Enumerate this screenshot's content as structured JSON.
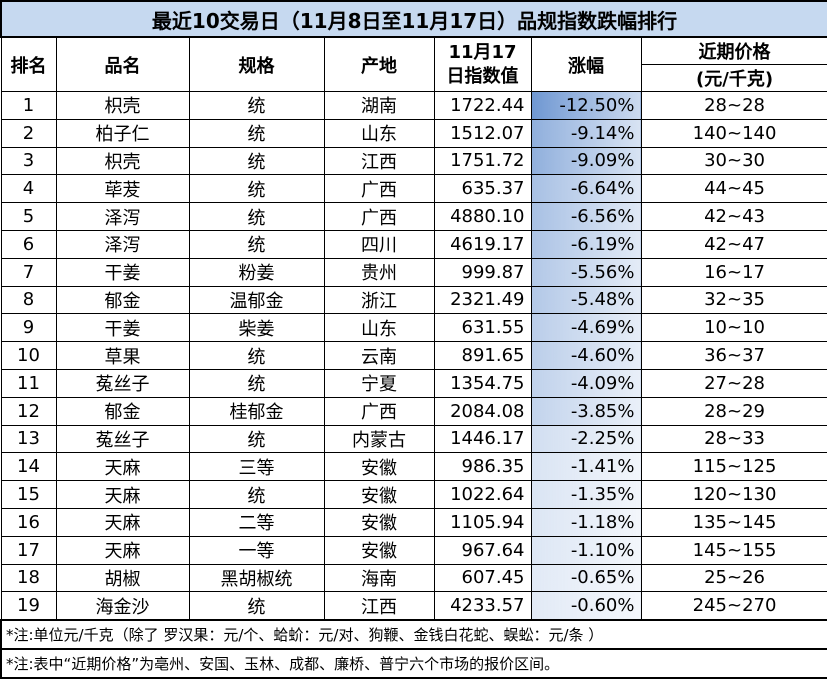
{
  "title": "最近10交易日（11月8日至11月17日）品规指数跌幅排行",
  "header": {
    "rank": "排名",
    "name": "品名",
    "spec": "规格",
    "origin": "产地",
    "index": [
      "11月17",
      "日指数值"
    ],
    "change": "涨幅",
    "price": [
      "近期价格",
      "(元/千克)"
    ]
  },
  "rows": [
    [
      "1",
      "枳壳",
      "统",
      "湖南",
      "1722.44",
      "-12.50%",
      "28~28"
    ],
    [
      "2",
      "柏子仁",
      "统",
      "山东",
      "1512.07",
      "-9.14%",
      "140~140"
    ],
    [
      "3",
      "枳壳",
      "统",
      "江西",
      "1751.72",
      "-9.09%",
      "30~30"
    ],
    [
      "4",
      "荜茇",
      "统",
      "广西",
      "635.37",
      "-6.64%",
      "44~45"
    ],
    [
      "5",
      "泽泻",
      "统",
      "广西",
      "4880.10",
      "-6.56%",
      "42~43"
    ],
    [
      "6",
      "泽泻",
      "统",
      "四川",
      "4619.17",
      "-6.19%",
      "42~47"
    ],
    [
      "7",
      "干姜",
      "粉姜",
      "贵州",
      "999.87",
      "-5.56%",
      "16~17"
    ],
    [
      "8",
      "郁金",
      "温郁金",
      "浙江",
      "2321.49",
      "-5.48%",
      "32~35"
    ],
    [
      "9",
      "干姜",
      "柴姜",
      "山东",
      "631.55",
      "-4.69%",
      "10~10"
    ],
    [
      "10",
      "草果",
      "统",
      "云南",
      "891.65",
      "-4.60%",
      "36~37"
    ],
    [
      "11",
      "菟丝子",
      "统",
      "宁夏",
      "1354.75",
      "-4.09%",
      "27~28"
    ],
    [
      "12",
      "郁金",
      "桂郁金",
      "广西",
      "2084.08",
      "-3.85%",
      "28~29"
    ],
    [
      "13",
      "菟丝子",
      "统",
      "内蒙古",
      "1446.17",
      "-2.25%",
      "28~33"
    ],
    [
      "14",
      "天麻",
      "三等",
      "安徽",
      "986.35",
      "-1.41%",
      "115~125"
    ],
    [
      "15",
      "天麻",
      "统",
      "安徽",
      "1022.64",
      "-1.35%",
      "120~130"
    ],
    [
      "16",
      "天麻",
      "二等",
      "安徽",
      "1105.94",
      "-1.18%",
      "135~145"
    ],
    [
      "17",
      "天麻",
      "一等",
      "安徽",
      "967.64",
      "-1.10%",
      "145~155"
    ],
    [
      "18",
      "胡椒",
      "黑胡椒统",
      "海南",
      "607.45",
      "-0.65%",
      "25~26"
    ],
    [
      "19",
      "海金沙",
      "统",
      "江西",
      "4233.57",
      "-0.60%",
      "245~270"
    ]
  ],
  "notes": [
    "*注:单位元/千克（除了 罗汉果：元/个、蛤蚧：元/对、狗鞭、金钱白花蛇、蜈蚣：元/条 ）",
    "*注:表中“近期价格”为亳州、安国、玉林、成都、廉桥、普宁六个市场的报价区间。"
  ]
}
